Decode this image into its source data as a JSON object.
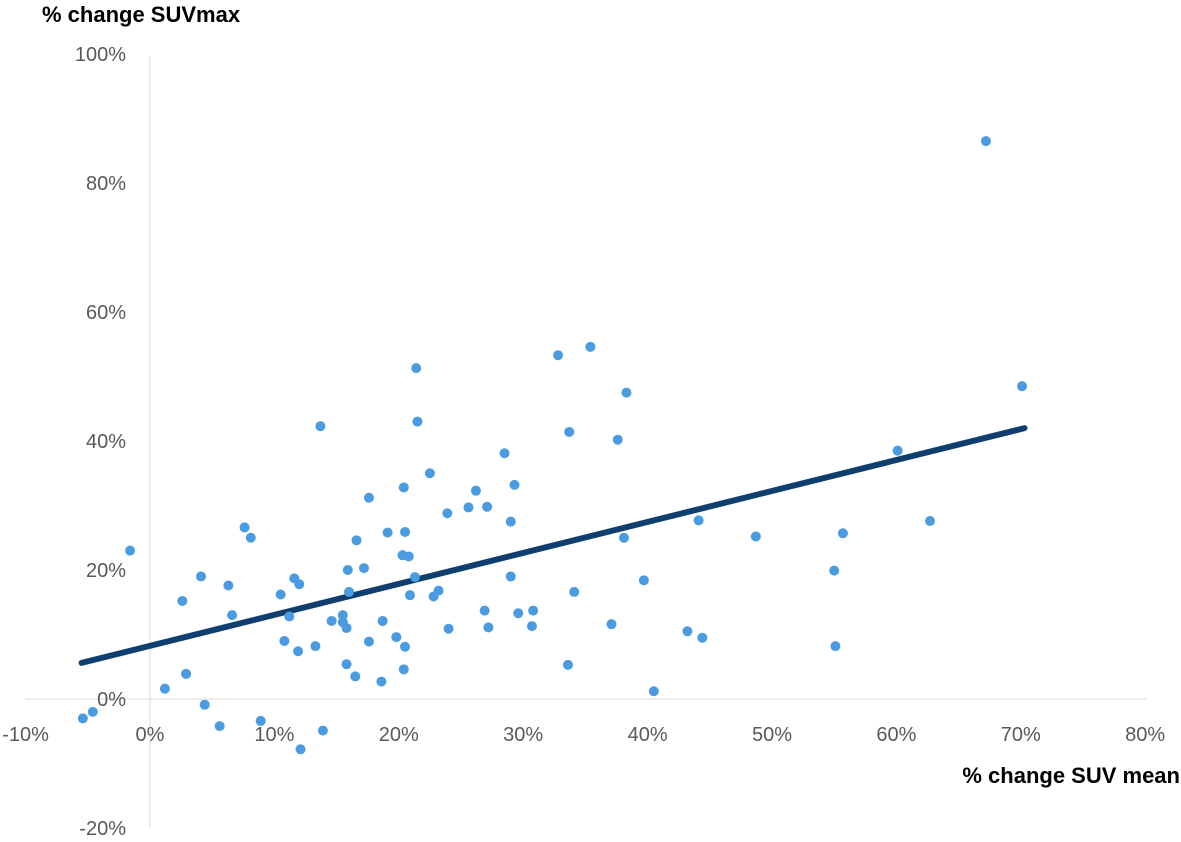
{
  "chart_data": {
    "type": "scatter",
    "title": "",
    "xlabel": "% change SUV mean",
    "ylabel": "% change SUVmax",
    "xlim": [
      -10,
      80
    ],
    "ylim": [
      -20,
      100
    ],
    "x_ticks": [
      -10,
      0,
      10,
      20,
      30,
      40,
      50,
      60,
      70,
      80
    ],
    "y_ticks": [
      -20,
      0,
      20,
      40,
      60,
      80,
      100
    ],
    "x_tick_labels": [
      "-10%",
      "0%",
      "10%",
      "20%",
      "30%",
      "40%",
      "50%",
      "60%",
      "70%",
      "80%"
    ],
    "y_tick_labels": [
      "-20%",
      "0%",
      "20%",
      "40%",
      "60%",
      "80%",
      "100%"
    ],
    "grid": false,
    "legend": "none",
    "colors": {
      "points": "#4a9be0",
      "trendline": "#0f3f6e",
      "axis": "#d9d9d9"
    },
    "trendline": {
      "x": [
        -5.5,
        70.3
      ],
      "y": [
        5.6,
        42.0
      ]
    },
    "points": [
      [
        -5.4,
        -3.0
      ],
      [
        -4.6,
        -2.0
      ],
      [
        -1.6,
        23.0
      ],
      [
        1.2,
        1.6
      ],
      [
        2.6,
        15.2
      ],
      [
        2.9,
        3.9
      ],
      [
        4.1,
        19.0
      ],
      [
        4.4,
        -0.9
      ],
      [
        5.6,
        -4.2
      ],
      [
        6.3,
        17.6
      ],
      [
        6.6,
        13.0
      ],
      [
        7.6,
        26.6
      ],
      [
        8.1,
        25.0
      ],
      [
        8.9,
        -3.4
      ],
      [
        10.5,
        16.2
      ],
      [
        10.8,
        9.0
      ],
      [
        11.2,
        12.8
      ],
      [
        11.6,
        18.7
      ],
      [
        11.9,
        7.4
      ],
      [
        12.0,
        17.8
      ],
      [
        12.1,
        -7.8
      ],
      [
        13.3,
        8.2
      ],
      [
        13.7,
        42.3
      ],
      [
        13.9,
        -4.9
      ],
      [
        14.6,
        12.1
      ],
      [
        15.5,
        13.0
      ],
      [
        15.5,
        11.9
      ],
      [
        15.8,
        5.4
      ],
      [
        15.8,
        11.0
      ],
      [
        15.9,
        20.0
      ],
      [
        16.0,
        16.6
      ],
      [
        16.5,
        3.5
      ],
      [
        16.6,
        24.6
      ],
      [
        17.2,
        20.3
      ],
      [
        17.6,
        31.2
      ],
      [
        17.6,
        8.9
      ],
      [
        18.6,
        2.7
      ],
      [
        18.7,
        12.1
      ],
      [
        19.1,
        25.8
      ],
      [
        19.8,
        9.6
      ],
      [
        20.3,
        22.3
      ],
      [
        20.4,
        32.8
      ],
      [
        20.4,
        4.6
      ],
      [
        20.5,
        25.9
      ],
      [
        20.5,
        8.1
      ],
      [
        20.8,
        22.1
      ],
      [
        20.9,
        16.1
      ],
      [
        21.3,
        18.9
      ],
      [
        21.4,
        51.3
      ],
      [
        21.5,
        43.0
      ],
      [
        22.5,
        35.0
      ],
      [
        22.8,
        15.9
      ],
      [
        23.2,
        16.8
      ],
      [
        23.9,
        28.8
      ],
      [
        24.0,
        10.9
      ],
      [
        25.6,
        29.7
      ],
      [
        26.2,
        32.3
      ],
      [
        26.9,
        13.7
      ],
      [
        27.1,
        29.8
      ],
      [
        27.2,
        11.1
      ],
      [
        28.5,
        38.1
      ],
      [
        29.0,
        27.5
      ],
      [
        29.0,
        19.0
      ],
      [
        29.3,
        33.2
      ],
      [
        29.6,
        13.3
      ],
      [
        30.7,
        11.3
      ],
      [
        30.8,
        13.7
      ],
      [
        32.8,
        53.3
      ],
      [
        33.6,
        5.3
      ],
      [
        33.7,
        41.4
      ],
      [
        34.1,
        16.6
      ],
      [
        35.4,
        54.6
      ],
      [
        37.1,
        11.6
      ],
      [
        37.6,
        40.2
      ],
      [
        38.1,
        25.0
      ],
      [
        38.3,
        47.5
      ],
      [
        39.7,
        18.4
      ],
      [
        40.5,
        1.2
      ],
      [
        43.2,
        10.5
      ],
      [
        44.1,
        27.7
      ],
      [
        44.4,
        9.5
      ],
      [
        48.7,
        25.2
      ],
      [
        55.0,
        19.9
      ],
      [
        55.1,
        8.2
      ],
      [
        55.7,
        25.7
      ],
      [
        60.1,
        38.5
      ],
      [
        62.7,
        27.6
      ],
      [
        67.2,
        86.5
      ],
      [
        70.1,
        48.5
      ]
    ]
  }
}
